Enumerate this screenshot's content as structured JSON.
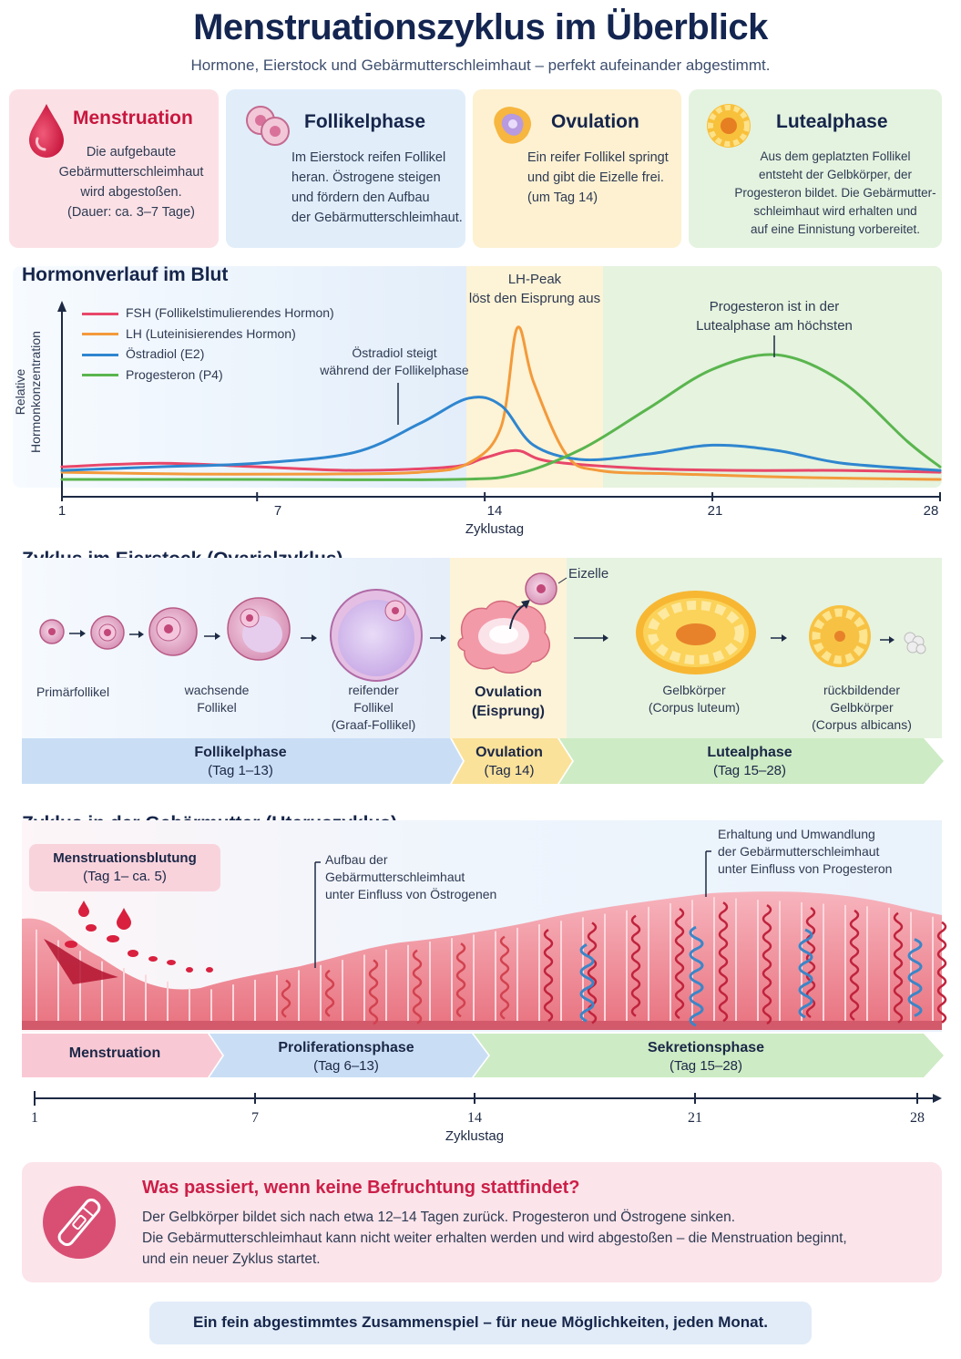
{
  "header": {
    "title": "Menstruationszyklus im Überblick",
    "subtitle": "Hormone, Eierstock und Gebärmutterschleimhaut – perfekt aufeinander abgestimmt."
  },
  "colors": {
    "pink": "#fbe1e6",
    "blue": "#e1eefa",
    "yellow": "#fdf1d2",
    "green": "#e4f3e0",
    "fsh": "#e8476a",
    "lh": "#f39a3b",
    "e2": "#2f86cf",
    "p4": "#5ab54e"
  },
  "cards": [
    {
      "title": "Menstruation",
      "lines": [
        "Die aufgebaute",
        "Gebärmutterschleimhaut",
        "wird abgestoßen.",
        "(Dauer: ca. 3–7 Tage)"
      ],
      "icon": "blood-drop-icon"
    },
    {
      "title": "Follikelphase",
      "lines": [
        "Im Eierstock reifen Follikel",
        "heran. Östrogene steigen",
        "und fördern den Aufbau",
        "der Gebärmutterschleimhaut."
      ],
      "icon": "follicle-icon"
    },
    {
      "title": "Ovulation",
      "lines": [
        "Ein reifer Follikel springt",
        "und gibt die Eizelle frei.",
        "(um Tag 14)"
      ],
      "icon": "ovulation-icon"
    },
    {
      "title": "Lutealphase",
      "lines": [
        "Aus dem geplatzten Follikel",
        "entsteht der Gelbkörper, der",
        "Progesteron bildet. Die Gebärmutter-",
        "schleimhaut wird erhalten und",
        "auf eine Einnistung vorbereitet."
      ],
      "icon": "corpus-luteum-icon"
    }
  ],
  "hormone_section": {
    "title": "Hormonverlauf im Blut",
    "ylabel_1": "Relative",
    "ylabel_2": "Hormonkonzentration",
    "xlabel": "Zyklustag",
    "legend": [
      "FSH (Follikelstimulierendes Hormon)",
      "LH (Luteinisierendes Hormon)",
      "Östradiol (E2)",
      "Progesteron (P4)"
    ],
    "annotations": {
      "lh_1": "LH-Peak",
      "lh_2": "löst den Eisprung aus",
      "e2_1": "Östradiol steigt",
      "e2_2": "während der Follikelphase",
      "p4_1": "Progesteron ist in der",
      "p4_2": "Lutealphase am höchsten"
    },
    "ticks": [
      "1",
      "7",
      "14",
      "21",
      "28"
    ]
  },
  "chart_data": {
    "type": "line",
    "xlabel": "Zyklustag",
    "ylabel": "Relative Hormonkonzentration",
    "xlim": [
      1,
      28
    ],
    "ylim": [
      0,
      1
    ],
    "series": [
      {
        "name": "FSH (Follikelstimulierendes Hormon)",
        "x": [
          1,
          4,
          7,
          10,
          13,
          14,
          15,
          16,
          19,
          22,
          25,
          28
        ],
        "y": [
          0.08,
          0.1,
          0.08,
          0.06,
          0.08,
          0.13,
          0.17,
          0.11,
          0.07,
          0.06,
          0.06,
          0.05
        ]
      },
      {
        "name": "LH (Luteinisierendes Hormon)",
        "x": [
          1,
          5,
          9,
          12,
          13.5,
          14.5,
          15,
          15.5,
          16.5,
          17.5,
          20,
          24,
          28
        ],
        "y": [
          0.05,
          0.04,
          0.04,
          0.05,
          0.1,
          0.3,
          0.85,
          0.55,
          0.15,
          0.06,
          0.04,
          0.02,
          0.01
        ]
      },
      {
        "name": "Östradiol (E2)",
        "x": [
          1,
          4,
          7,
          10,
          12,
          13.5,
          14.5,
          15.5,
          17,
          19,
          21,
          23,
          25,
          28
        ],
        "y": [
          0.06,
          0.08,
          0.1,
          0.16,
          0.32,
          0.46,
          0.42,
          0.2,
          0.12,
          0.15,
          0.2,
          0.17,
          0.1,
          0.06
        ]
      },
      {
        "name": "Progesteron (P4)",
        "x": [
          1,
          7,
          13,
          15,
          17,
          19,
          21,
          23,
          25,
          27,
          28
        ],
        "y": [
          0.01,
          0.01,
          0.01,
          0.04,
          0.18,
          0.4,
          0.62,
          0.7,
          0.55,
          0.22,
          0.08
        ]
      }
    ]
  },
  "ovary_section": {
    "title": "Zyklus im Eierstock (Ovarialzyklus)",
    "egg": "Eizelle",
    "stages": [
      {
        "l1": "Primärfollikel"
      },
      {
        "l1": "wachsende",
        "l2": "Follikel"
      },
      {
        "l1": "reifender",
        "l2": "Follikel",
        "l3": "(Graaf-Follikel)"
      },
      {
        "l1": "Ovulation",
        "l2": "(Eisprung)"
      },
      {
        "l1": "Gelbkörper",
        "l2": "(Corpus luteum)"
      },
      {
        "l1": "rückbildender",
        "l2": "Gelbkörper",
        "l3": "(Corpus albicans)"
      }
    ],
    "bands": [
      {
        "name": "Follikelphase",
        "days": "(Tag 1–13)"
      },
      {
        "name": "Ovulation",
        "days": "(Tag 14)"
      },
      {
        "name": "Lutealphase",
        "days": "(Tag 15–28)"
      }
    ]
  },
  "uterus_section": {
    "title": "Zyklus in der Gebärmutter (Uteruszyklus)",
    "bleed_title": "Menstruationsblutung",
    "bleed_days": "(Tag 1– ca. 5)",
    "build": [
      "Aufbau der",
      "Gebärmutterschleimhaut",
      "unter Einfluss von Östrogenen"
    ],
    "keep": [
      "Erhaltung und Umwandlung",
      "der Gebärmutterschleimhaut",
      "unter Einfluss von Progesteron"
    ],
    "bands": [
      {
        "name": "Menstruation",
        "days": ""
      },
      {
        "name": "Proliferationsphase",
        "days": "(Tag 6–13)"
      },
      {
        "name": "Sekretionsphase",
        "days": "(Tag 15–28)"
      }
    ],
    "ticks": [
      "1",
      "7",
      "14",
      "21",
      "28"
    ],
    "xlabel": "Zyklustag"
  },
  "info": {
    "title": "Was passiert, wenn keine Befruchtung stattfindet?",
    "lines": [
      "Der Gelbkörper bildet sich nach etwa 12–14 Tagen zurück. Progesteron und Östrogene sinken.",
      "Die Gebärmutterschleimhaut kann nicht weiter erhalten werden und wird abgestoßen – die Menstruation beginnt,",
      "und ein neuer Zyklus startet."
    ]
  },
  "footer": "Ein fein abgestimmtes Zusammenspiel – für neue Möglichkeiten, jeden Monat."
}
